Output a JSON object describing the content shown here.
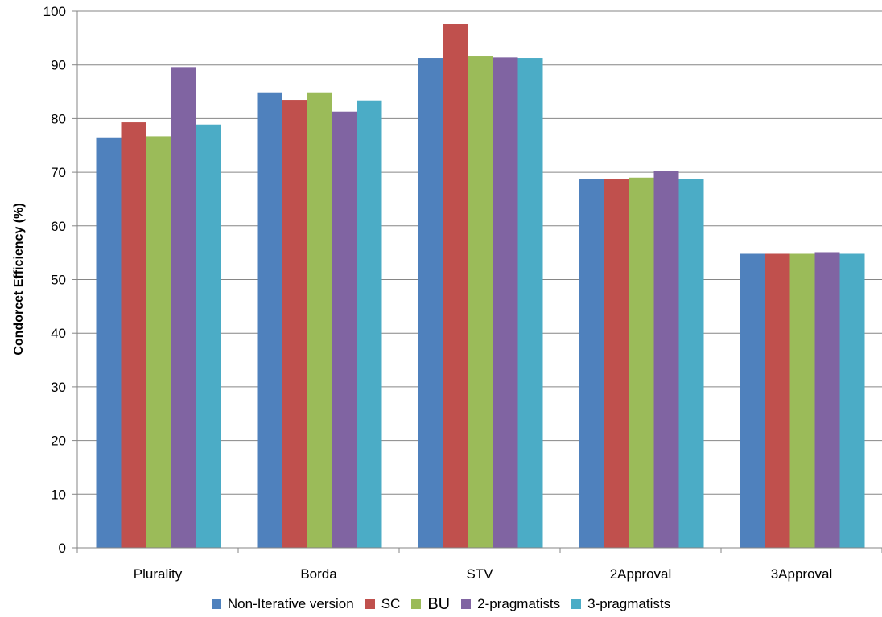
{
  "chart_data": {
    "type": "bar",
    "title": "",
    "xlabel": "",
    "ylabel": "Condorcet Efficiency (%)",
    "ylim": [
      0,
      100
    ],
    "yticks": [
      "0",
      "10",
      "20",
      "30",
      "40",
      "50",
      "60",
      "70",
      "80",
      "90",
      "100"
    ],
    "grid": true,
    "legend_position": "bottom",
    "categories": [
      "Plurality",
      "Borda",
      "STV",
      "2Approval",
      "3Approval"
    ],
    "series": [
      {
        "name": "Non-Iterative version",
        "color": "#4F81BD",
        "values": [
          76.5,
          84.9,
          91.3,
          68.7,
          54.8
        ]
      },
      {
        "name": "SC",
        "color": "#C0504D",
        "values": [
          79.3,
          83.5,
          97.6,
          68.7,
          54.8
        ]
      },
      {
        "name": "BU",
        "color": "#9BBB59",
        "values": [
          76.7,
          84.9,
          91.6,
          69.0,
          54.8
        ]
      },
      {
        "name": "2-pragmatists",
        "color": "#8064A2",
        "values": [
          89.6,
          81.3,
          91.4,
          70.3,
          55.1
        ]
      },
      {
        "name": "3-pragmatists",
        "color": "#4BACC6",
        "values": [
          78.9,
          83.4,
          91.3,
          68.8,
          54.8
        ]
      }
    ]
  }
}
